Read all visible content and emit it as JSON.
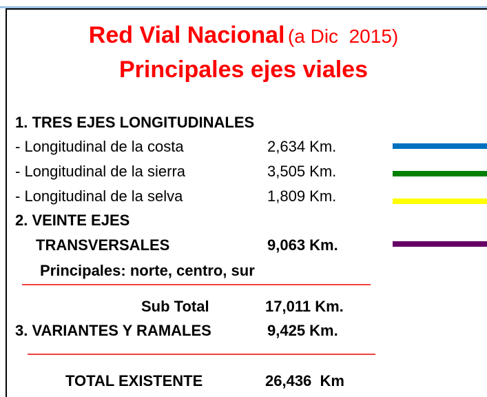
{
  "header": {
    "title": "Red Vial Nacional",
    "title_note": "(a Dic  2015)",
    "subtitle": "Principales ejes viales"
  },
  "sections": [
    {
      "heading": "1. TRES EJES LONGITUDINALES",
      "rows": [
        {
          "label": "- Longitudinal de la costa",
          "value": "2,634 Km.",
          "color": "#0070c0"
        },
        {
          "label": "- Longitudinal de la sierra",
          "value": "3,505 Km.",
          "color": "#008000"
        },
        {
          "label": "- Longitudinal de la selva",
          "value": "1,809 Km.",
          "color": "#ffff00"
        }
      ]
    },
    {
      "heading": "2. VEINTE EJES",
      "label": "TRANSVERSALES",
      "value": "9,063 Km.",
      "color": "#660066",
      "note": "Principales: norte, centro, sur"
    }
  ],
  "subtotal": {
    "label": "Sub Total",
    "value": "17,011 Km."
  },
  "variants": {
    "label": "3. VARIANTES Y RAMALES",
    "value": "9,425 Km."
  },
  "total": {
    "label": "TOTAL EXISTENTE",
    "value": "26,436  Km"
  }
}
